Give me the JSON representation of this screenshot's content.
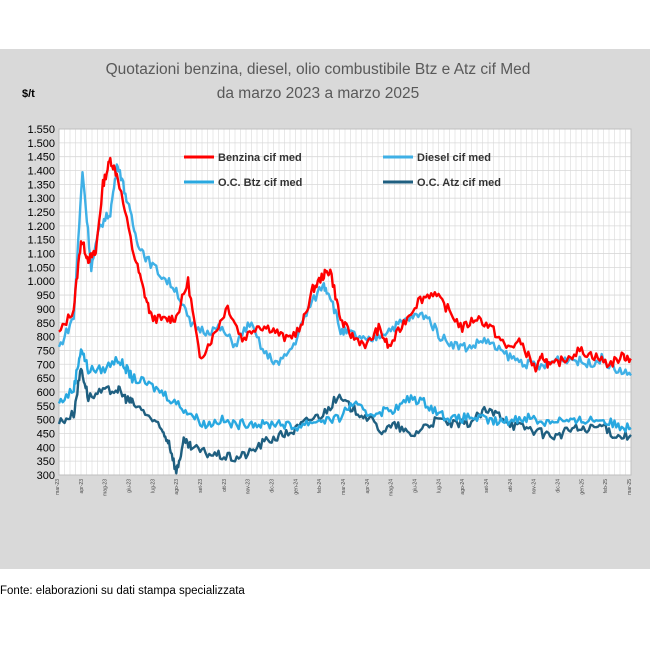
{
  "chart_data": {
    "type": "line",
    "title": "Quotazioni benzina, diesel, olio combustibile Btz e Atz cif Med",
    "subtitle": "da marzo 2023 a marzo 2025",
    "ylabel": "$/t",
    "ylim": [
      300,
      1550
    ],
    "yticks": [
      "1.550",
      "1.500",
      "1.450",
      "1.400",
      "1.350",
      "1.300",
      "1.250",
      "1.200",
      "1.150",
      "1.100",
      "1.050",
      "1.000",
      "950",
      "900",
      "850",
      "800",
      "750",
      "700",
      "650",
      "600",
      "550",
      "500",
      "450",
      "400",
      "350",
      "300"
    ],
    "x": [
      "mar-23",
      "apr-23",
      "mag-23",
      "giu-23",
      "lug-23",
      "ago-23",
      "set-23",
      "ott-23",
      "nov-23",
      "dic-23",
      "gen-24",
      "feb-24",
      "mar-24",
      "apr-24",
      "mag-24",
      "giu-24",
      "lug-24",
      "ago-24",
      "set-24",
      "ott-24",
      "nov-24",
      "dic-24",
      "gen-25",
      "feb-25",
      "mar-25"
    ],
    "series": [
      {
        "name": "Benzina cif med",
        "color": "#ff0000",
        "points": [
          [
            0,
            810
          ],
          [
            1,
            900
          ],
          [
            1.5,
            1150
          ],
          [
            2,
            1080
          ],
          [
            2.5,
            1100
          ],
          [
            3,
            1350
          ],
          [
            3.5,
            1440
          ],
          [
            4,
            1380
          ],
          [
            5,
            1120
          ],
          [
            5.7,
            980
          ],
          [
            6.3,
            870
          ],
          [
            7.2,
            860
          ],
          [
            8,
            870
          ],
          [
            8.8,
            1000
          ],
          [
            9.6,
            720
          ],
          [
            10.5,
            800
          ],
          [
            11.5,
            910
          ],
          [
            12.5,
            790
          ],
          [
            13.5,
            840
          ],
          [
            14.5,
            830
          ],
          [
            15.5,
            790
          ],
          [
            16.5,
            830
          ],
          [
            17.3,
            970
          ],
          [
            18,
            1020
          ],
          [
            18.5,
            1040
          ],
          [
            19.2,
            860
          ],
          [
            20,
            800
          ],
          [
            21,
            770
          ],
          [
            21.8,
            830
          ],
          [
            22.5,
            760
          ],
          [
            23.5,
            850
          ],
          [
            24.5,
            930
          ],
          [
            25.5,
            960
          ],
          [
            26.5,
            900
          ],
          [
            27.5,
            830
          ],
          [
            28.5,
            870
          ],
          [
            29.5,
            830
          ],
          [
            30.5,
            760
          ],
          [
            31.5,
            780
          ],
          [
            32.5,
            680
          ],
          [
            33,
            730
          ],
          [
            33.5,
            690
          ],
          [
            34.5,
            720
          ],
          [
            35.5,
            750
          ],
          [
            36.5,
            730
          ],
          [
            37.5,
            700
          ],
          [
            38.5,
            730
          ],
          [
            39,
            720
          ]
        ]
      },
      {
        "name": "Diesel cif med",
        "color": "#3fb0e6",
        "points": [
          [
            0,
            760
          ],
          [
            1,
            870
          ],
          [
            1.6,
            1400
          ],
          [
            2.2,
            1050
          ],
          [
            2.8,
            1200
          ],
          [
            3.5,
            1250
          ],
          [
            4,
            1430
          ],
          [
            4.6,
            1300
          ],
          [
            5.3,
            1150
          ],
          [
            6,
            1080
          ],
          [
            7,
            1020
          ],
          [
            8,
            970
          ],
          [
            9,
            840
          ],
          [
            10,
            820
          ],
          [
            11,
            830
          ],
          [
            12,
            770
          ],
          [
            13,
            850
          ],
          [
            14,
            740
          ],
          [
            15,
            700
          ],
          [
            16,
            770
          ],
          [
            17,
            900
          ],
          [
            18,
            990
          ],
          [
            18.5,
            950
          ],
          [
            19.2,
            820
          ],
          [
            20,
            810
          ],
          [
            21,
            780
          ],
          [
            22,
            810
          ],
          [
            23,
            840
          ],
          [
            24,
            870
          ],
          [
            25,
            880
          ],
          [
            26,
            800
          ],
          [
            27,
            770
          ],
          [
            28,
            760
          ],
          [
            29,
            790
          ],
          [
            30,
            750
          ],
          [
            31,
            720
          ],
          [
            32,
            700
          ],
          [
            33,
            690
          ],
          [
            34,
            720
          ],
          [
            35,
            720
          ],
          [
            36,
            700
          ],
          [
            37,
            720
          ],
          [
            38,
            680
          ],
          [
            39,
            660
          ]
        ]
      },
      {
        "name": "O.C. Btz cif med",
        "color": "#29a8e0",
        "points": [
          [
            0,
            560
          ],
          [
            1,
            610
          ],
          [
            1.5,
            760
          ],
          [
            2,
            680
          ],
          [
            3,
            680
          ],
          [
            4,
            720
          ],
          [
            4.5,
            690
          ],
          [
            5,
            650
          ],
          [
            6,
            630
          ],
          [
            7,
            600
          ],
          [
            8,
            560
          ],
          [
            9,
            520
          ],
          [
            10,
            480
          ],
          [
            11,
            500
          ],
          [
            12,
            480
          ],
          [
            13,
            490
          ],
          [
            14,
            480
          ],
          [
            15,
            490
          ],
          [
            16,
            470
          ],
          [
            17,
            490
          ],
          [
            18,
            500
          ],
          [
            19,
            500
          ],
          [
            20,
            560
          ],
          [
            21,
            520
          ],
          [
            22,
            530
          ],
          [
            23,
            540
          ],
          [
            24,
            580
          ],
          [
            25,
            560
          ],
          [
            26,
            520
          ],
          [
            27,
            500
          ],
          [
            28,
            510
          ],
          [
            29,
            500
          ],
          [
            30,
            490
          ],
          [
            31,
            500
          ],
          [
            32,
            510
          ],
          [
            33,
            490
          ],
          [
            34,
            500
          ],
          [
            35,
            490
          ],
          [
            36,
            500
          ],
          [
            37,
            500
          ],
          [
            38,
            480
          ],
          [
            39,
            470
          ]
        ]
      },
      {
        "name": "O.C. Atz cif med",
        "color": "#1f5f80",
        "points": [
          [
            0,
            490
          ],
          [
            1,
            520
          ],
          [
            1.5,
            690
          ],
          [
            2,
            580
          ],
          [
            3,
            600
          ],
          [
            4,
            610
          ],
          [
            4.5,
            580
          ],
          [
            5,
            560
          ],
          [
            6,
            520
          ],
          [
            7,
            460
          ],
          [
            7.5,
            420
          ],
          [
            8,
            310
          ],
          [
            8.5,
            420
          ],
          [
            9,
            400
          ],
          [
            10,
            380
          ],
          [
            11,
            370
          ],
          [
            12,
            360
          ],
          [
            13,
            380
          ],
          [
            14,
            420
          ],
          [
            15,
            440
          ],
          [
            16,
            460
          ],
          [
            17,
            500
          ],
          [
            18,
            520
          ],
          [
            19,
            580
          ],
          [
            20,
            540
          ],
          [
            21,
            510
          ],
          [
            22,
            460
          ],
          [
            23,
            480
          ],
          [
            24,
            440
          ],
          [
            25,
            480
          ],
          [
            26,
            500
          ],
          [
            27,
            480
          ],
          [
            28,
            490
          ],
          [
            29,
            530
          ],
          [
            30,
            520
          ],
          [
            31,
            480
          ],
          [
            32,
            470
          ],
          [
            33,
            450
          ],
          [
            34,
            440
          ],
          [
            35,
            470
          ],
          [
            36,
            460
          ],
          [
            37,
            480
          ],
          [
            38,
            440
          ],
          [
            39,
            445
          ]
        ]
      }
    ],
    "legend": [
      "Benzina cif med",
      "Diesel cif med",
      "O.C. Btz cif med",
      "O.C. Atz cif med"
    ],
    "grid": true
  },
  "source_note": "Fonte: elaborazioni su dati stampa specializzata"
}
